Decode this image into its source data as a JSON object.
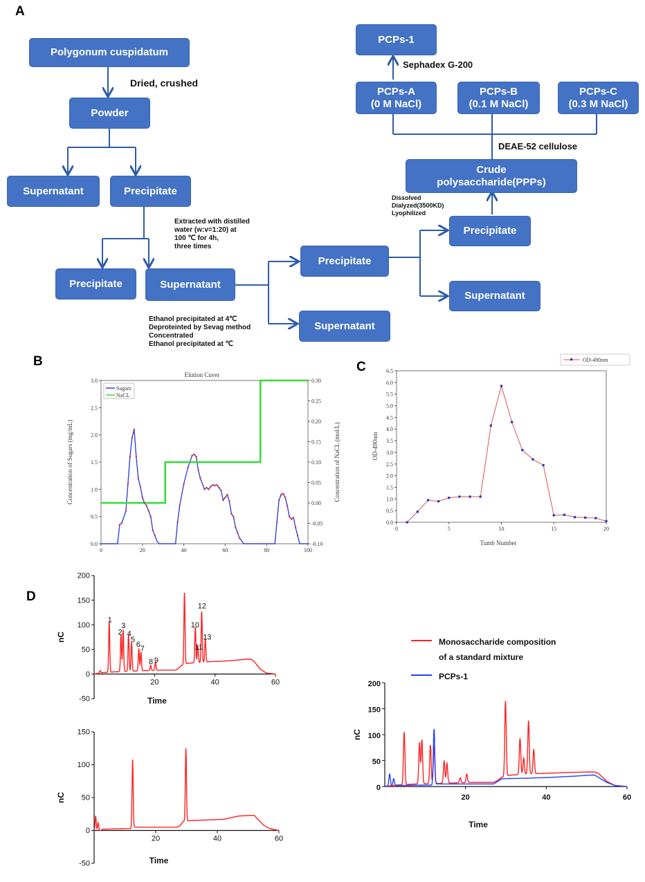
{
  "panels": {
    "a": "A",
    "b": "B",
    "c": "C",
    "d": "D"
  },
  "flowchart": {
    "boxes": {
      "source": "Polygonum cuspidatum",
      "powder": "Powder",
      "supernatant1": "Supernatant",
      "precipitate1": "Precipitate",
      "precipitate2": "Precipitate",
      "supernatant2": "Supernatant",
      "precipitate3": "Precipitate",
      "supernatant3": "Supernatant",
      "precipitate4": "Precipitate",
      "supernatant4": "Supernatant",
      "crude": "Crude\npolysaccharide(PPPs)",
      "pcps_a": "PCPs-A\n(0 M NaCl)",
      "pcps_b": "PCPs-B\n(0.1 M NaCl)",
      "pcps_c": "PCPs-C\n(0.3 M NaCl)",
      "pcps_1": "PCPs-1"
    },
    "steps": {
      "dried": "Dried, crushed",
      "extract": "Extracted with distilled\nwater (w:v=1:20) at\n100 ℃ for 4h,\nthree times",
      "ethanol": "Ethanol precipitated at 4℃\nDeproteinted by Sevag method\nConcentrated\nEthanol precipitated at ℃",
      "dissolve": "Dissolved\nDialyzed(3500KD)\nLyophilized",
      "deae": "DEAE-52 cellulose",
      "sephadex": "Sephadex G-200"
    }
  },
  "colors": {
    "box": "#4472C4",
    "blue_line": "#2E5BA8",
    "sugar": "#3344dd",
    "nacl": "#33dd33",
    "od": "#e05050",
    "red": "#ff2020",
    "blue": "#2040ff"
  },
  "chart_data": [
    {
      "id": "B",
      "type": "line",
      "title": "Elution Cuver",
      "ylabel": "Concentration of Sugars (mg/mL)",
      "y2label": "Concentration of NaCL (mol/L)",
      "xlim": [
        0,
        100
      ],
      "ylim": [
        0,
        3.0
      ],
      "y2lim": [
        -0.1,
        0.3
      ],
      "xticks": [
        "0",
        "20",
        "40",
        "60",
        "80",
        "100"
      ],
      "yticks": [
        "0.0",
        "0.5",
        "1.0",
        "1.5",
        "2.0",
        "2.5",
        "3.0"
      ],
      "y2ticks": [
        "-0.10",
        "-0.05",
        "0.00",
        "0.05",
        "0.10",
        "0.15",
        "0.20",
        "0.25",
        "0.30"
      ],
      "legend": [
        "Sugars",
        "NaCL"
      ],
      "legend_position": "top-left",
      "series": [
        {
          "name": "Sugars",
          "x": [
            0,
            8,
            9,
            10,
            12,
            13,
            14,
            15,
            16,
            17,
            18,
            19,
            20,
            21,
            22,
            23,
            24,
            25,
            26,
            27,
            28,
            36,
            37,
            38,
            40,
            42,
            44,
            45,
            46,
            47,
            48,
            50,
            51,
            52,
            53,
            54,
            55,
            56,
            57,
            58,
            59,
            60,
            61,
            62,
            63,
            64,
            65,
            66,
            67,
            68,
            69,
            84,
            85,
            86,
            87,
            88,
            89,
            90,
            91,
            92,
            93,
            94,
            95,
            96,
            100
          ],
          "y": [
            0,
            0,
            0.35,
            0.38,
            0.6,
            1.1,
            1.6,
            1.95,
            2.1,
            1.6,
            1.2,
            1.05,
            0.85,
            0.75,
            0.7,
            0.6,
            0.5,
            0.25,
            0.15,
            0.05,
            0,
            0,
            0.4,
            0.7,
            1.1,
            1.4,
            1.62,
            1.64,
            1.6,
            1.35,
            1.2,
            1.0,
            1.03,
            1.0,
            1.05,
            1.08,
            1.07,
            1.08,
            1.03,
            0.98,
            0.8,
            0.85,
            0.9,
            0.78,
            0.55,
            0.5,
            0.3,
            0.2,
            0.1,
            0.05,
            0,
            0,
            0.4,
            0.8,
            0.9,
            0.92,
            0.85,
            0.7,
            0.5,
            0.45,
            0.48,
            0.3,
            0.15,
            0,
            0
          ]
        },
        {
          "name": "NaCL",
          "x": [
            0,
            31,
            31,
            77,
            77,
            100
          ],
          "y": [
            0,
            0,
            0.1,
            0.1,
            0.3,
            0.3
          ]
        }
      ]
    },
    {
      "id": "C",
      "type": "line",
      "xlabel": "Tumb Number",
      "ylabel": "OD-490nm",
      "xlim": [
        0,
        20
      ],
      "ylim": [
        0,
        6.5
      ],
      "xticks": [
        "0",
        "5",
        "10",
        "15",
        "20"
      ],
      "yticks": [
        "0.0",
        "0.5",
        "1.0",
        "1.5",
        "2.0",
        "2.5",
        "3.0",
        "3.5",
        "4.0",
        "4.5",
        "5.0",
        "5.5",
        "6.0",
        "6.5"
      ],
      "legend": [
        "OD-490nm"
      ],
      "legend_position": "top-right",
      "series": [
        {
          "name": "OD-490nm",
          "x": [
            1,
            2,
            3,
            4,
            5,
            6,
            7,
            8,
            9,
            10,
            11,
            12,
            13,
            14,
            15,
            16,
            17,
            18,
            19,
            20
          ],
          "y": [
            0,
            0.45,
            0.95,
            0.9,
            1.05,
            1.1,
            1.1,
            1.1,
            4.15,
            5.85,
            4.3,
            3.1,
            2.7,
            2.45,
            0.3,
            0.32,
            0.22,
            0.2,
            0.18,
            0.05
          ]
        }
      ]
    },
    {
      "id": "D1",
      "type": "line",
      "xlabel": "Time",
      "ylabel": "nC",
      "xlim": [
        0,
        60
      ],
      "ylim": [
        -50,
        200
      ],
      "xticks": [
        "20",
        "40",
        "60"
      ],
      "yticks": [
        "-50",
        "0",
        "50",
        "100",
        "150",
        "200"
      ],
      "peak_labels": [
        {
          "label": "1",
          "x": 5.2,
          "y": 105
        },
        {
          "label": "2",
          "x": 8.6,
          "y": 80
        },
        {
          "label": "3",
          "x": 9.7,
          "y": 93
        },
        {
          "label": "4",
          "x": 11.6,
          "y": 77
        },
        {
          "label": "5",
          "x": 12.8,
          "y": 65
        },
        {
          "label": "6",
          "x": 14.6,
          "y": 55
        },
        {
          "label": "7",
          "x": 16.0,
          "y": 47
        },
        {
          "label": "8",
          "x": 18.8,
          "y": 20
        },
        {
          "label": "9",
          "x": 20.6,
          "y": 23
        },
        {
          "label": "10",
          "x": 33.4,
          "y": 95
        },
        {
          "label": "11",
          "x": 34.6,
          "y": 50
        },
        {
          "label": "12",
          "x": 35.7,
          "y": 133
        },
        {
          "label": "13",
          "x": 37.4,
          "y": 70
        }
      ],
      "series": [
        {
          "name": "",
          "peaks": [
            [
              2.0,
              7
            ],
            [
              5.0,
              105
            ],
            [
              8.9,
              80
            ],
            [
              9.6,
              90
            ],
            [
              11.4,
              80
            ],
            [
              12.4,
              65
            ],
            [
              14.8,
              52
            ],
            [
              15.5,
              45
            ],
            [
              18.7,
              18
            ],
            [
              20.3,
              25
            ],
            [
              29.9,
              165
            ],
            [
              33.5,
              95
            ],
            [
              34.3,
              58
            ],
            [
              35.6,
              127
            ],
            [
              36.8,
              72
            ]
          ],
          "baseline": [
            [
              0,
              0
            ],
            [
              3,
              3
            ],
            [
              8,
              5
            ],
            [
              22,
              8
            ],
            [
              27,
              8
            ],
            [
              28,
              12
            ],
            [
              29,
              18
            ],
            [
              31,
              22
            ],
            [
              38,
              25
            ],
            [
              45,
              27
            ],
            [
              50,
              30
            ],
            [
              52,
              30
            ],
            [
              53,
              25
            ],
            [
              55,
              10
            ],
            [
              57,
              2
            ],
            [
              60,
              0
            ]
          ]
        }
      ]
    },
    {
      "id": "D2",
      "type": "line",
      "xlabel": "Time",
      "ylabel": "nC",
      "xlim": [
        0,
        60
      ],
      "ylim": [
        -50,
        150
      ],
      "xticks": [
        "20",
        "40",
        "60"
      ],
      "yticks": [
        "-50",
        "0",
        "50",
        "100",
        "150"
      ],
      "series": [
        {
          "name": "",
          "peaks": [
            [
              0.5,
              22
            ],
            [
              1.3,
              12
            ],
            [
              12.5,
              108
            ],
            [
              29.8,
              125
            ]
          ],
          "baseline": [
            [
              0,
              0
            ],
            [
              2,
              0
            ],
            [
              3,
              2
            ],
            [
              12,
              3
            ],
            [
              13,
              5
            ],
            [
              27,
              5
            ],
            [
              28,
              8
            ],
            [
              29,
              14
            ],
            [
              31,
              15
            ],
            [
              42,
              17
            ],
            [
              47,
              22
            ],
            [
              51,
              23
            ],
            [
              52,
              23
            ],
            [
              55,
              8
            ],
            [
              57,
              3
            ],
            [
              60,
              0
            ]
          ]
        }
      ]
    },
    {
      "id": "D3",
      "type": "line",
      "xlabel": "Time",
      "ylabel": "nC",
      "xlim": [
        0,
        60
      ],
      "ylim": [
        0,
        200
      ],
      "xticks": [
        "20",
        "40",
        "60"
      ],
      "yticks": [
        "0",
        "50",
        "100",
        "150",
        "200"
      ],
      "legend": [
        "Monosaccharide composition\nof a standard mixture",
        "PCPs-1"
      ],
      "legend_position": "top-right",
      "series": [
        {
          "name": "Monosaccharide composition\nof a standard mixture",
          "peaks": [
            [
              4.8,
              105
            ],
            [
              8.6,
              85
            ],
            [
              9.2,
              90
            ],
            [
              11.3,
              80
            ],
            [
              12.2,
              80
            ],
            [
              14.7,
              50
            ],
            [
              15.4,
              45
            ],
            [
              18.7,
              17
            ],
            [
              20.3,
              24
            ],
            [
              29.9,
              165
            ],
            [
              33.5,
              93
            ],
            [
              34.4,
              55
            ],
            [
              35.6,
              127
            ],
            [
              36.9,
              72
            ]
          ],
          "baseline": [
            [
              0,
              0
            ],
            [
              3,
              3
            ],
            [
              8,
              5
            ],
            [
              22,
              8
            ],
            [
              27,
              8
            ],
            [
              28,
              12
            ],
            [
              29,
              18
            ],
            [
              31,
              22
            ],
            [
              38,
              25
            ],
            [
              45,
              27
            ],
            [
              50,
              28
            ],
            [
              52,
              28
            ],
            [
              53,
              25
            ],
            [
              55,
              10
            ],
            [
              57,
              2
            ],
            [
              60,
              0
            ]
          ]
        },
        {
          "name": "PCPs-1",
          "peaks": [
            [
              1.2,
              24
            ],
            [
              2.2,
              15
            ],
            [
              12.2,
              111
            ],
            [
              29.9,
              15
            ]
          ],
          "baseline": [
            [
              0,
              0
            ],
            [
              1,
              2
            ],
            [
              3,
              2
            ],
            [
              12,
              3
            ],
            [
              13,
              5
            ],
            [
              27,
              5
            ],
            [
              28,
              10
            ],
            [
              29,
              15
            ],
            [
              35,
              16
            ],
            [
              42,
              18
            ],
            [
              47,
              20
            ],
            [
              51,
              22
            ],
            [
              52,
              22
            ],
            [
              55,
              8
            ],
            [
              57,
              2
            ],
            [
              60,
              0
            ]
          ]
        }
      ]
    }
  ]
}
